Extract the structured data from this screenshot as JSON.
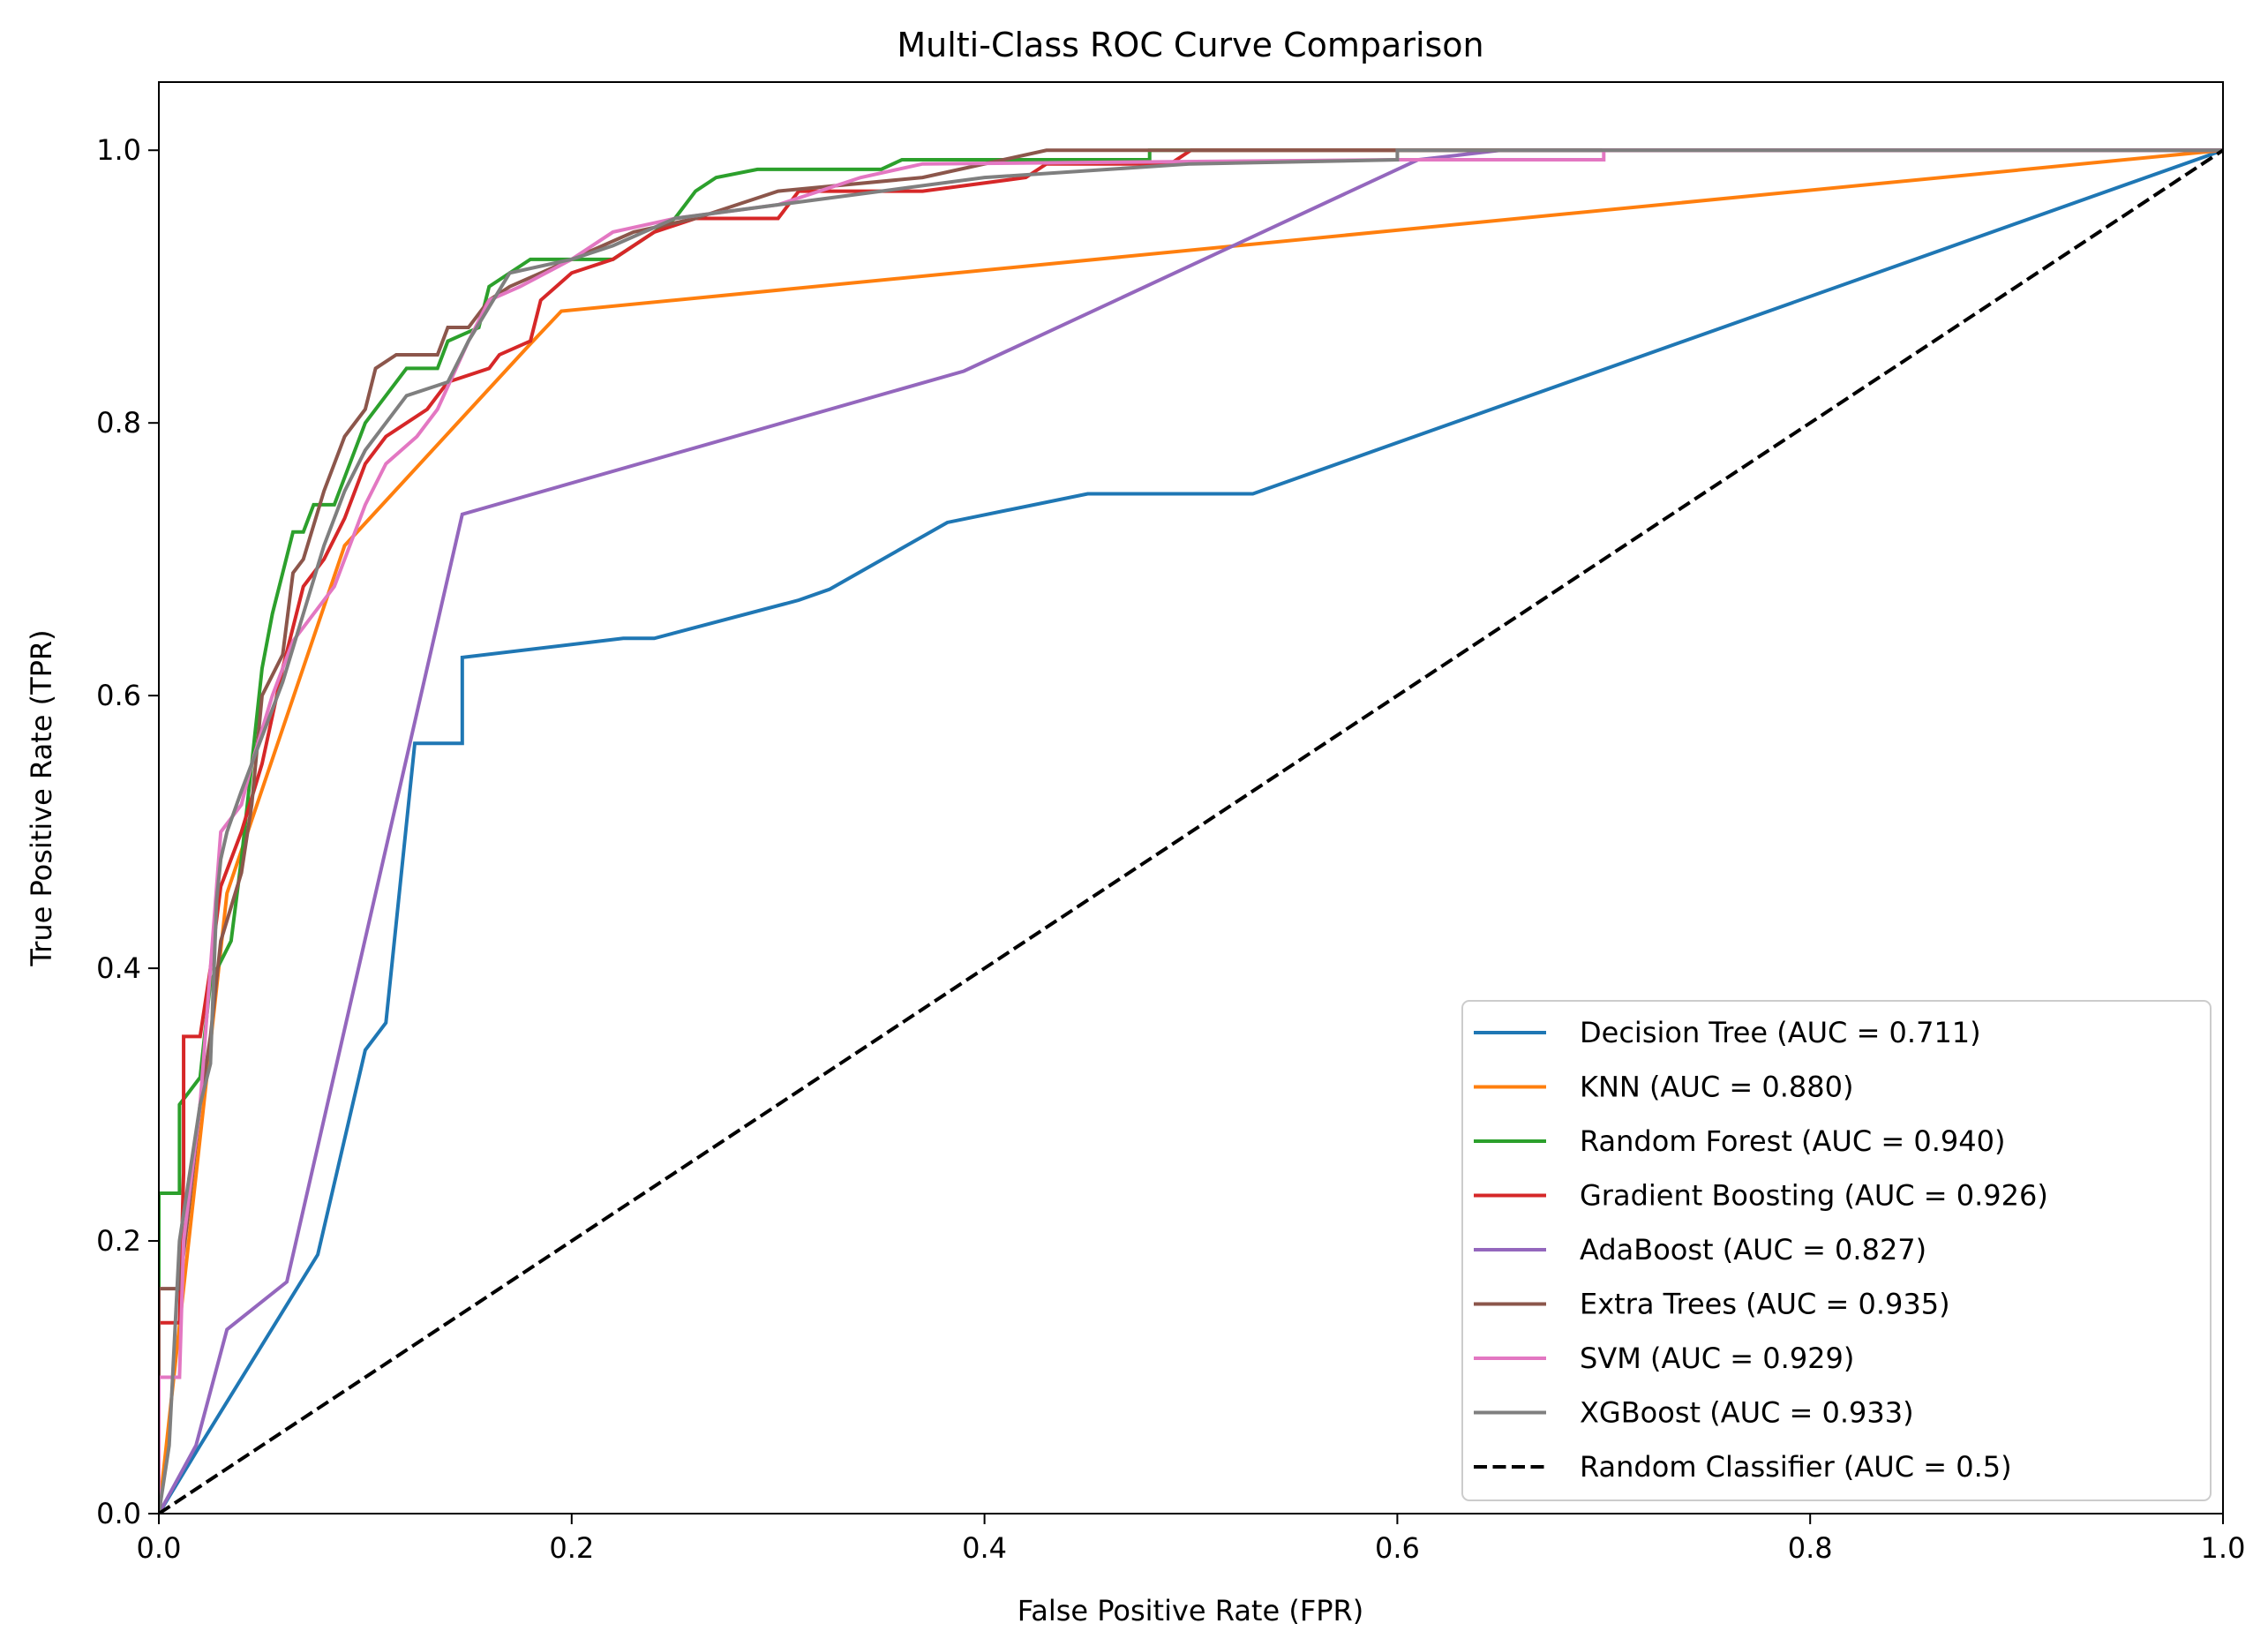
{
  "chart_data": {
    "type": "line",
    "title": "Multi-Class ROC Curve Comparison",
    "xlabel": "False Positive Rate (FPR)",
    "ylabel": "True Positive Rate (TPR)",
    "xlim": [
      0,
      1
    ],
    "ylim": [
      0,
      1.05
    ],
    "xticks": [
      0.0,
      0.2,
      0.4,
      0.6,
      0.8,
      1.0
    ],
    "yticks": [
      0.0,
      0.2,
      0.4,
      0.6,
      0.8,
      1.0
    ],
    "xtick_labels": [
      "0.0",
      "0.2",
      "0.4",
      "0.6",
      "0.8",
      "1.0"
    ],
    "ytick_labels": [
      "0.0",
      "0.2",
      "0.4",
      "0.6",
      "0.8",
      "1.0"
    ],
    "grid": false,
    "legend_position": "lower right",
    "series": [
      {
        "name": "Decision Tree (AUC = 0.711)",
        "color": "#1f77b4",
        "dash": "solid",
        "points": [
          [
            0,
            0
          ],
          [
            0.02,
            0.05
          ],
          [
            0.077,
            0.19
          ],
          [
            0.1,
            0.34
          ],
          [
            0.11,
            0.36
          ],
          [
            0.124,
            0.565
          ],
          [
            0.147,
            0.565
          ],
          [
            0.147,
            0.628
          ],
          [
            0.225,
            0.642
          ],
          [
            0.24,
            0.642
          ],
          [
            0.31,
            0.67
          ],
          [
            0.325,
            0.678
          ],
          [
            0.382,
            0.727
          ],
          [
            0.45,
            0.748
          ],
          [
            0.53,
            0.748
          ],
          [
            1,
            1
          ]
        ]
      },
      {
        "name": "KNN (AUC = 0.880)",
        "color": "#ff7f0e",
        "dash": "solid",
        "points": [
          [
            0,
            0
          ],
          [
            0.033,
            0.455
          ],
          [
            0.09,
            0.71
          ],
          [
            0.18,
            0.858
          ],
          [
            0.195,
            0.882
          ],
          [
            1,
            1
          ]
        ]
      },
      {
        "name": "Random Forest (AUC = 0.940)",
        "color": "#2ca02c",
        "dash": "solid",
        "points": [
          [
            0,
            0
          ],
          [
            0,
            0.235
          ],
          [
            0.01,
            0.235
          ],
          [
            0.01,
            0.3
          ],
          [
            0.02,
            0.32
          ],
          [
            0.025,
            0.39
          ],
          [
            0.035,
            0.42
          ],
          [
            0.04,
            0.48
          ],
          [
            0.045,
            0.55
          ],
          [
            0.05,
            0.62
          ],
          [
            0.055,
            0.66
          ],
          [
            0.06,
            0.69
          ],
          [
            0.065,
            0.72
          ],
          [
            0.07,
            0.72
          ],
          [
            0.075,
            0.74
          ],
          [
            0.085,
            0.74
          ],
          [
            0.095,
            0.78
          ],
          [
            0.1,
            0.8
          ],
          [
            0.11,
            0.82
          ],
          [
            0.12,
            0.84
          ],
          [
            0.135,
            0.84
          ],
          [
            0.14,
            0.86
          ],
          [
            0.155,
            0.87
          ],
          [
            0.16,
            0.9
          ],
          [
            0.18,
            0.92
          ],
          [
            0.2,
            0.92
          ],
          [
            0.22,
            0.92
          ],
          [
            0.23,
            0.93
          ],
          [
            0.25,
            0.95
          ],
          [
            0.26,
            0.97
          ],
          [
            0.27,
            0.98
          ],
          [
            0.29,
            0.986
          ],
          [
            0.35,
            0.986
          ],
          [
            0.36,
            0.993
          ],
          [
            0.48,
            0.993
          ],
          [
            0.48,
            1
          ],
          [
            1,
            1
          ]
        ]
      },
      {
        "name": "Gradient Boosting (AUC = 0.926)",
        "color": "#d62728",
        "dash": "solid",
        "points": [
          [
            0,
            0
          ],
          [
            0,
            0.14
          ],
          [
            0.01,
            0.14
          ],
          [
            0.012,
            0.25
          ],
          [
            0.012,
            0.35
          ],
          [
            0.02,
            0.35
          ],
          [
            0.025,
            0.4
          ],
          [
            0.03,
            0.46
          ],
          [
            0.04,
            0.5
          ],
          [
            0.05,
            0.55
          ],
          [
            0.06,
            0.62
          ],
          [
            0.07,
            0.68
          ],
          [
            0.08,
            0.7
          ],
          [
            0.09,
            0.73
          ],
          [
            0.1,
            0.77
          ],
          [
            0.11,
            0.79
          ],
          [
            0.12,
            0.8
          ],
          [
            0.13,
            0.81
          ],
          [
            0.14,
            0.83
          ],
          [
            0.16,
            0.84
          ],
          [
            0.165,
            0.85
          ],
          [
            0.18,
            0.86
          ],
          [
            0.185,
            0.89
          ],
          [
            0.2,
            0.91
          ],
          [
            0.22,
            0.92
          ],
          [
            0.24,
            0.94
          ],
          [
            0.26,
            0.95
          ],
          [
            0.3,
            0.95
          ],
          [
            0.31,
            0.97
          ],
          [
            0.37,
            0.97
          ],
          [
            0.42,
            0.98
          ],
          [
            0.43,
            0.99
          ],
          [
            0.49,
            0.99
          ],
          [
            0.5,
            1
          ],
          [
            1,
            1
          ]
        ]
      },
      {
        "name": "AdaBoost (AUC = 0.827)",
        "color": "#9467bd",
        "dash": "solid",
        "points": [
          [
            0,
            0
          ],
          [
            0.018,
            0.05
          ],
          [
            0.033,
            0.135
          ],
          [
            0.062,
            0.17
          ],
          [
            0.147,
            0.733
          ],
          [
            0.39,
            0.838
          ],
          [
            0.61,
            0.993
          ],
          [
            0.65,
            1
          ],
          [
            1,
            1
          ]
        ]
      },
      {
        "name": "Extra Trees (AUC = 0.935)",
        "color": "#8c564b",
        "dash": "solid",
        "points": [
          [
            0,
            0
          ],
          [
            0,
            0.165
          ],
          [
            0.01,
            0.165
          ],
          [
            0.015,
            0.23
          ],
          [
            0.02,
            0.3
          ],
          [
            0.025,
            0.35
          ],
          [
            0.03,
            0.42
          ],
          [
            0.04,
            0.47
          ],
          [
            0.045,
            0.52
          ],
          [
            0.05,
            0.6
          ],
          [
            0.06,
            0.63
          ],
          [
            0.065,
            0.69
          ],
          [
            0.07,
            0.7
          ],
          [
            0.08,
            0.75
          ],
          [
            0.09,
            0.79
          ],
          [
            0.1,
            0.81
          ],
          [
            0.105,
            0.84
          ],
          [
            0.115,
            0.85
          ],
          [
            0.135,
            0.85
          ],
          [
            0.14,
            0.87
          ],
          [
            0.15,
            0.87
          ],
          [
            0.16,
            0.89
          ],
          [
            0.17,
            0.9
          ],
          [
            0.2,
            0.92
          ],
          [
            0.23,
            0.94
          ],
          [
            0.26,
            0.95
          ],
          [
            0.3,
            0.97
          ],
          [
            0.37,
            0.98
          ],
          [
            0.43,
            1
          ],
          [
            1,
            1
          ]
        ]
      },
      {
        "name": "SVM (AUC = 0.929)",
        "color": "#e377c2",
        "dash": "solid",
        "points": [
          [
            0,
            0
          ],
          [
            0,
            0.1
          ],
          [
            0.01,
            0.1
          ],
          [
            0.012,
            0.2
          ],
          [
            0.02,
            0.3
          ],
          [
            0.025,
            0.4
          ],
          [
            0.03,
            0.5
          ],
          [
            0.04,
            0.52
          ],
          [
            0.045,
            0.55
          ],
          [
            0.055,
            0.6
          ],
          [
            0.065,
            0.64
          ],
          [
            0.075,
            0.66
          ],
          [
            0.085,
            0.68
          ],
          [
            0.09,
            0.7
          ],
          [
            0.1,
            0.74
          ],
          [
            0.11,
            0.77
          ],
          [
            0.125,
            0.79
          ],
          [
            0.135,
            0.81
          ],
          [
            0.15,
            0.86
          ],
          [
            0.16,
            0.89
          ],
          [
            0.175,
            0.9
          ],
          [
            0.2,
            0.92
          ],
          [
            0.22,
            0.94
          ],
          [
            0.25,
            0.95
          ],
          [
            0.3,
            0.96
          ],
          [
            0.34,
            0.98
          ],
          [
            0.37,
            0.99
          ],
          [
            0.6,
            0.993
          ],
          [
            0.7,
            0.993
          ],
          [
            0.7,
            1
          ],
          [
            1,
            1
          ]
        ]
      },
      {
        "name": "XGBoost (AUC = 0.933)",
        "color": "#7f7f7f",
        "dash": "solid",
        "points": [
          [
            0,
            0
          ],
          [
            0.005,
            0.05
          ],
          [
            0.01,
            0.2
          ],
          [
            0.02,
            0.3
          ],
          [
            0.025,
            0.33
          ],
          [
            0.028,
            0.45
          ],
          [
            0.03,
            0.48
          ],
          [
            0.033,
            0.5
          ],
          [
            0.04,
            0.53
          ],
          [
            0.045,
            0.55
          ],
          [
            0.05,
            0.57
          ],
          [
            0.06,
            0.61
          ],
          [
            0.07,
            0.66
          ],
          [
            0.08,
            0.71
          ],
          [
            0.09,
            0.75
          ],
          [
            0.1,
            0.78
          ],
          [
            0.11,
            0.8
          ],
          [
            0.12,
            0.82
          ],
          [
            0.14,
            0.83
          ],
          [
            0.15,
            0.86
          ],
          [
            0.17,
            0.91
          ],
          [
            0.2,
            0.92
          ],
          [
            0.22,
            0.93
          ],
          [
            0.25,
            0.95
          ],
          [
            0.3,
            0.96
          ],
          [
            0.35,
            0.97
          ],
          [
            0.4,
            0.98
          ],
          [
            0.5,
            0.99
          ],
          [
            0.6,
            0.993
          ],
          [
            0.6,
            1
          ],
          [
            1,
            1
          ]
        ]
      },
      {
        "name": "Random Classifier (AUC = 0.5)",
        "color": "#000000",
        "dash": "dashed",
        "points": [
          [
            0,
            0
          ],
          [
            1,
            1
          ]
        ]
      }
    ]
  }
}
